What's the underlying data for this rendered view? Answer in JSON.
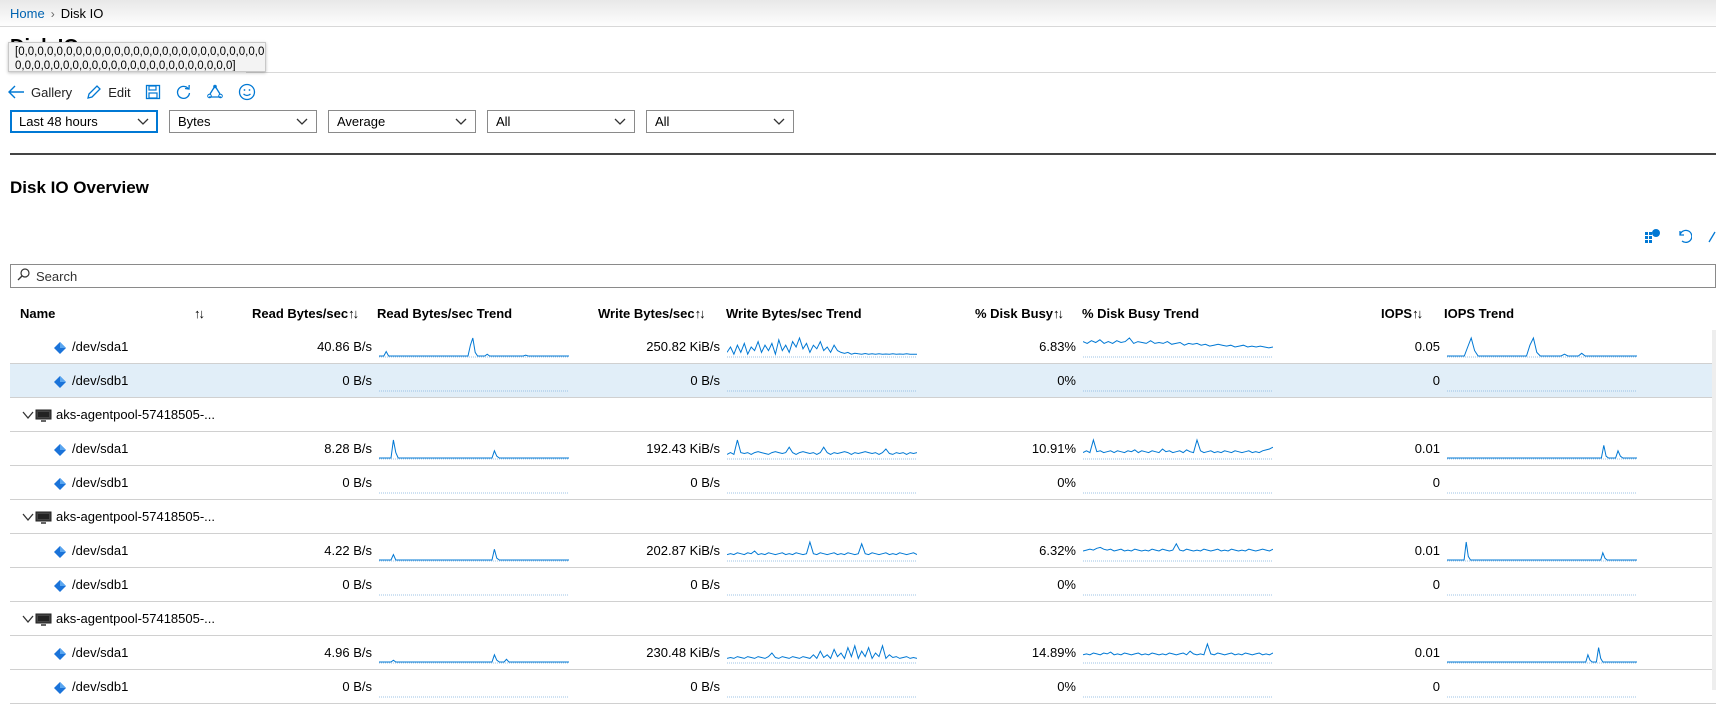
{
  "breadcrumb": {
    "home": "Home",
    "current": "Disk IO"
  },
  "page_title": "Disk IO",
  "tooltip": "[0,0,0,0,0,0,0,0,0,0,0,0,0,0,0,0,0,0,0,0,0,0,0,0,0,0,0,0,0,\n0,0,0,0,0,0,0,0,0,0,0,0,0,0,0,0,0,0,0,0,0,0,0]",
  "toolbar": {
    "gallery": "Gallery",
    "edit": "Edit",
    "icons": [
      "arrow-left-icon",
      "pencil-icon",
      "save-icon",
      "refresh-icon",
      "recycle-icon",
      "smiley-icon"
    ]
  },
  "filters": [
    "Last 48 hours",
    "Bytes",
    "Average",
    "All",
    "All"
  ],
  "section_title": "Disk IO Overview",
  "search_placeholder": "Search",
  "columns": {
    "name": "Name",
    "read": "Read Bytes/sec",
    "read_trend": "Read Bytes/sec Trend",
    "write": "Write Bytes/sec",
    "write_trend": "Write Bytes/sec Trend",
    "busy": "% Disk Busy",
    "busy_trend": "% Disk Busy Trend",
    "iops": "IOPS",
    "iops_trend": "IOPS Trend",
    "sort_glyph": "↑↓"
  },
  "accent_color": "#0078d4",
  "selected_row_color": "#e1eef8",
  "rows": [
    {
      "type": "disk",
      "name": "/dev/sda1",
      "read": "40.86 B/s",
      "write": "250.82 KiB/s",
      "busy": "6.83%",
      "iops": "0.05",
      "read_trend": [
        0,
        0,
        0,
        0.25,
        0,
        0,
        0,
        0,
        0,
        0,
        0,
        0,
        0,
        0,
        0,
        0,
        0,
        0,
        0,
        0,
        0,
        0,
        0,
        0,
        0,
        0,
        0,
        0,
        0,
        0,
        0,
        0,
        0,
        0,
        0,
        0,
        0,
        0,
        0.6,
        1,
        0.2,
        0,
        0,
        0,
        0,
        0.1,
        0,
        0,
        0,
        0,
        0,
        0,
        0,
        0,
        0,
        0,
        0,
        0,
        0,
        0,
        0,
        0.05,
        0,
        0,
        0,
        0,
        0,
        0,
        0,
        0,
        0,
        0,
        0,
        0,
        0,
        0,
        0,
        0,
        0,
        0
      ],
      "write_trend": [
        0.2,
        0.5,
        0.1,
        0.6,
        0.2,
        0.7,
        0.1,
        0.5,
        0.3,
        0.8,
        0.2,
        0.6,
        0.3,
        0.7,
        0.1,
        0.9,
        0.3,
        0.6,
        0.2,
        0.8,
        0.5,
        1,
        0.4,
        0.7,
        0.2,
        0.6,
        0.4,
        0.8,
        0.3,
        0.5,
        0.2,
        0.6,
        0.3,
        0.2,
        0.15,
        0.2,
        0.1,
        0.15,
        0.12,
        0.1,
        0.14,
        0.1,
        0.12,
        0.1,
        0.13,
        0.1,
        0.11,
        0.1,
        0.12,
        0.1,
        0.11,
        0.1,
        0.12,
        0.1,
        0.1,
        0.1
      ],
      "busy_trend": [
        0.8,
        0.7,
        0.85,
        0.75,
        0.9,
        0.7,
        0.8,
        0.7,
        0.85,
        0.75,
        0.8,
        1,
        0.7,
        0.8,
        0.75,
        0.7,
        0.85,
        0.7,
        0.75,
        0.7,
        0.8,
        0.65,
        0.7,
        0.75,
        0.6,
        0.7,
        0.65,
        0.7,
        0.6,
        0.65,
        0.55,
        0.6,
        0.65,
        0.6,
        0.55,
        0.6,
        0.5,
        0.55,
        0.6,
        0.5,
        0.55,
        0.5,
        0.55,
        0.5,
        0.45,
        0.5
      ],
      "iops_trend": [
        0,
        0,
        0,
        0,
        0,
        0,
        0.5,
        1,
        0.3,
        0,
        0,
        0,
        0,
        0,
        0,
        0,
        0,
        0,
        0,
        0,
        0,
        0,
        0,
        0,
        0.6,
        1,
        0.2,
        0,
        0,
        0,
        0,
        0,
        0,
        0,
        0.1,
        0,
        0,
        0,
        0,
        0.15,
        0,
        0,
        0,
        0,
        0,
        0,
        0,
        0,
        0,
        0,
        0,
        0,
        0,
        0,
        0,
        0
      ]
    },
    {
      "type": "disk",
      "name": "/dev/sdb1",
      "read": "0 B/s",
      "write": "0 B/s",
      "busy": "0%",
      "iops": "0",
      "selected": true
    },
    {
      "type": "group",
      "name": "aks-agentpool-57418505-..."
    },
    {
      "type": "disk",
      "name": "/dev/sda1",
      "read": "8.28 B/s",
      "write": "192.43 KiB/s",
      "busy": "10.91%",
      "iops": "0.01",
      "read_trend": [
        0,
        0,
        0,
        0,
        0,
        0,
        1,
        0.3,
        0,
        0,
        0,
        0,
        0,
        0,
        0,
        0,
        0,
        0,
        0,
        0,
        0,
        0,
        0,
        0,
        0,
        0,
        0,
        0,
        0,
        0,
        0,
        0,
        0,
        0,
        0,
        0,
        0,
        0,
        0,
        0,
        0,
        0,
        0,
        0,
        0,
        0,
        0,
        0,
        0.4,
        0.1,
        0,
        0,
        0,
        0,
        0,
        0,
        0,
        0,
        0,
        0,
        0,
        0,
        0,
        0,
        0,
        0,
        0,
        0,
        0,
        0,
        0,
        0,
        0,
        0,
        0,
        0,
        0,
        0,
        0,
        0
      ],
      "write_trend": [
        0.2,
        0.3,
        0.2,
        1,
        0.3,
        0.25,
        0.3,
        0.2,
        0.3,
        0.35,
        0.3,
        0.25,
        0.2,
        0.3,
        0.35,
        0.3,
        0.25,
        0.3,
        0.6,
        0.3,
        0.2,
        0.3,
        0.35,
        0.3,
        0.25,
        0.3,
        0.2,
        0.3,
        0.6,
        0.3,
        0.2,
        0.3,
        0.25,
        0.3,
        0.35,
        0.3,
        0.2,
        0.3,
        0.25,
        0.3,
        0.35,
        0.3,
        0.25,
        0.3,
        0.2,
        0.3,
        0.5,
        0.25,
        0.2,
        0.3,
        0.25,
        0.3,
        0.2,
        0.3,
        0.25,
        0.3
      ],
      "busy_trend": [
        0.3,
        0.4,
        0.3,
        1,
        0.35,
        0.4,
        0.3,
        0.35,
        0.4,
        0.3,
        0.4,
        0.35,
        0.3,
        0.4,
        0.35,
        0.45,
        0.3,
        0.4,
        0.35,
        0.3,
        0.4,
        0.35,
        0.3,
        0.5,
        0.35,
        0.4,
        0.3,
        0.35,
        0.4,
        0.3,
        0.45,
        0.35,
        0.3,
        1,
        0.4,
        0.3,
        0.35,
        0.4,
        0.3,
        0.35,
        0.3,
        0.4,
        0.35,
        0.3,
        0.4,
        0.35,
        0.3,
        0.35,
        0.4,
        0.3,
        0.35,
        0.3,
        0.4,
        0.45,
        0.5,
        0.6
      ],
      "iops_trend": [
        0,
        0,
        0,
        0,
        0,
        0,
        0,
        0,
        0,
        0,
        0,
        0,
        0,
        0,
        0,
        0,
        0,
        0,
        0,
        0,
        0,
        0,
        0,
        0,
        0,
        0,
        0,
        0,
        0,
        0,
        0,
        0,
        0,
        0,
        0,
        0,
        0,
        0,
        0,
        0,
        0,
        0,
        0,
        0,
        0,
        0,
        0,
        0,
        0,
        0,
        0,
        0,
        0,
        0,
        0,
        0,
        0,
        0,
        0,
        0,
        0,
        0,
        0,
        0,
        0,
        0,
        0.7,
        0.1,
        0,
        0,
        0,
        0,
        0.4,
        0.1,
        0,
        0,
        0,
        0,
        0,
        0,
        0
      ]
    },
    {
      "type": "disk",
      "name": "/dev/sdb1",
      "read": "0 B/s",
      "write": "0 B/s",
      "busy": "0%",
      "iops": "0"
    },
    {
      "type": "group",
      "name": "aks-agentpool-57418505-..."
    },
    {
      "type": "disk",
      "name": "/dev/sda1",
      "read": "4.22 B/s",
      "write": "202.87 KiB/s",
      "busy": "6.32%",
      "iops": "0.01",
      "read_trend": [
        0,
        0,
        0,
        0,
        0,
        0,
        0.3,
        0,
        0,
        0,
        0,
        0,
        0,
        0,
        0,
        0,
        0,
        0,
        0,
        0,
        0,
        0,
        0,
        0,
        0,
        0,
        0,
        0,
        0,
        0,
        0,
        0,
        0,
        0,
        0,
        0,
        0,
        0,
        0,
        0,
        0,
        0,
        0,
        0,
        0,
        0,
        0,
        0,
        0.6,
        0.1,
        0,
        0,
        0,
        0,
        0,
        0,
        0,
        0,
        0,
        0,
        0,
        0,
        0,
        0,
        0,
        0,
        0,
        0,
        0,
        0,
        0,
        0,
        0,
        0,
        0,
        0,
        0,
        0,
        0,
        0
      ],
      "write_trend": [
        0.3,
        0.35,
        0.3,
        0.4,
        0.35,
        0.3,
        0.4,
        0.35,
        0.5,
        0.3,
        0.35,
        0.3,
        0.4,
        0.35,
        0.3,
        0.35,
        0.4,
        0.3,
        0.35,
        0.3,
        0.4,
        0.35,
        0.3,
        0.35,
        1,
        0.35,
        0.3,
        0.4,
        0.35,
        0.3,
        0.35,
        0.4,
        0.3,
        0.35,
        0.3,
        0.4,
        0.35,
        0.3,
        0.35,
        0.9,
        0.35,
        0.3,
        0.4,
        0.35,
        0.3,
        0.35,
        0.4,
        0.3,
        0.35,
        0.3,
        0.4,
        0.35,
        0.3,
        0.35,
        0.4,
        0.3
      ],
      "busy_trend": [
        0.5,
        0.55,
        0.6,
        0.55,
        0.65,
        0.7,
        0.6,
        0.55,
        0.6,
        0.5,
        0.55,
        0.6,
        0.5,
        0.55,
        0.5,
        0.6,
        0.55,
        0.5,
        0.55,
        0.5,
        0.6,
        0.55,
        0.5,
        0.6,
        0.55,
        0.5,
        0.55,
        0.9,
        0.55,
        0.5,
        0.6,
        0.55,
        0.5,
        0.55,
        0.5,
        0.6,
        0.55,
        0.5,
        0.55,
        0.6,
        0.5,
        0.55,
        0.5,
        0.6,
        0.55,
        0.5,
        0.55,
        0.5,
        0.6,
        0.55,
        0.5,
        0.55,
        0.6,
        0.55,
        0.5,
        0.6
      ],
      "iops_trend": [
        0,
        0,
        0,
        0,
        0,
        0,
        0,
        0,
        0,
        1,
        0.2,
        0,
        0,
        0,
        0,
        0,
        0,
        0,
        0,
        0,
        0,
        0,
        0,
        0,
        0,
        0,
        0,
        0,
        0,
        0,
        0,
        0,
        0,
        0,
        0,
        0,
        0,
        0,
        0,
        0,
        0,
        0,
        0,
        0,
        0,
        0,
        0,
        0,
        0,
        0,
        0,
        0,
        0,
        0,
        0,
        0,
        0,
        0,
        0,
        0,
        0,
        0,
        0,
        0,
        0,
        0,
        0,
        0,
        0,
        0,
        0,
        0,
        0,
        0.4,
        0.1,
        0,
        0,
        0,
        0,
        0,
        0,
        0,
        0,
        0,
        0,
        0,
        0,
        0,
        0,
        0
      ]
    },
    {
      "type": "disk",
      "name": "/dev/sdb1",
      "read": "0 B/s",
      "write": "0 B/s",
      "busy": "0%",
      "iops": "0"
    },
    {
      "type": "group",
      "name": "aks-agentpool-57418505-..."
    },
    {
      "type": "disk",
      "name": "/dev/sda1",
      "read": "4.96 B/s",
      "write": "230.48 KiB/s",
      "busy": "14.89%",
      "iops": "0.01",
      "read_trend": [
        0,
        0,
        0,
        0,
        0,
        0,
        0.1,
        0,
        0,
        0,
        0,
        0,
        0,
        0,
        0,
        0,
        0,
        0,
        0,
        0,
        0,
        0,
        0,
        0,
        0,
        0,
        0,
        0,
        0,
        0,
        0,
        0,
        0,
        0,
        0,
        0,
        0,
        0,
        0,
        0,
        0,
        0,
        0,
        0,
        0,
        0,
        0,
        0,
        0.4,
        0.1,
        0,
        0,
        0,
        0.15,
        0,
        0,
        0,
        0,
        0,
        0,
        0,
        0,
        0,
        0,
        0,
        0,
        0,
        0,
        0,
        0,
        0,
        0,
        0,
        0,
        0,
        0,
        0,
        0,
        0,
        0
      ],
      "write_trend": [
        0.2,
        0.25,
        0.2,
        0.3,
        0.25,
        0.2,
        0.3,
        0.25,
        0.2,
        0.3,
        0.25,
        0.2,
        0.3,
        0.5,
        0.25,
        0.2,
        0.3,
        0.25,
        0.2,
        0.3,
        0.25,
        0.2,
        0.3,
        0.25,
        0.2,
        0.4,
        0.2,
        0.6,
        0.25,
        0.4,
        0.2,
        0.7,
        0.3,
        0.5,
        0.2,
        0.8,
        0.3,
        0.9,
        0.2,
        0.6,
        0.3,
        0.8,
        0.2,
        0.5,
        0.3,
        0.9,
        0.2,
        0.4,
        0.25,
        0.3,
        0.2,
        0.25,
        0.3,
        0.2,
        0.25,
        0.2
      ],
      "busy_trend": [
        0.4,
        0.45,
        0.4,
        0.5,
        0.45,
        0.4,
        0.5,
        0.45,
        0.55,
        0.4,
        0.45,
        0.4,
        0.5,
        0.45,
        0.4,
        0.45,
        0.5,
        0.4,
        0.45,
        0.4,
        0.5,
        0.45,
        0.4,
        0.45,
        0.4,
        0.5,
        0.45,
        0.4,
        0.45,
        0.5,
        0.4,
        0.6,
        0.45,
        0.4,
        0.45,
        0.4,
        1,
        0.45,
        0.4,
        0.5,
        0.45,
        0.4,
        0.45,
        0.5,
        0.4,
        0.45,
        0.4,
        0.5,
        0.45,
        0.4,
        0.45,
        0.5,
        0.4,
        0.45,
        0.4,
        0.5
      ],
      "iops_trend": [
        0,
        0,
        0,
        0,
        0,
        0,
        0,
        0,
        0,
        0,
        0,
        0,
        0,
        0,
        0,
        0,
        0,
        0,
        0,
        0,
        0,
        0,
        0,
        0,
        0,
        0,
        0,
        0,
        0,
        0,
        0,
        0,
        0,
        0,
        0,
        0,
        0,
        0,
        0,
        0,
        0,
        0,
        0,
        0,
        0,
        0,
        0,
        0,
        0,
        0,
        0,
        0,
        0,
        0,
        0,
        0,
        0,
        0,
        0,
        0,
        0,
        0,
        0,
        0,
        0,
        0,
        0.4,
        0.1,
        0,
        0,
        0,
        0.8,
        0.2,
        0,
        0,
        0,
        0,
        0,
        0,
        0,
        0,
        0,
        0,
        0,
        0,
        0,
        0,
        0,
        0,
        0
      ]
    },
    {
      "type": "disk",
      "name": "/dev/sdb1",
      "read": "0 B/s",
      "write": "0 B/s",
      "busy": "0%",
      "iops": "0"
    }
  ]
}
